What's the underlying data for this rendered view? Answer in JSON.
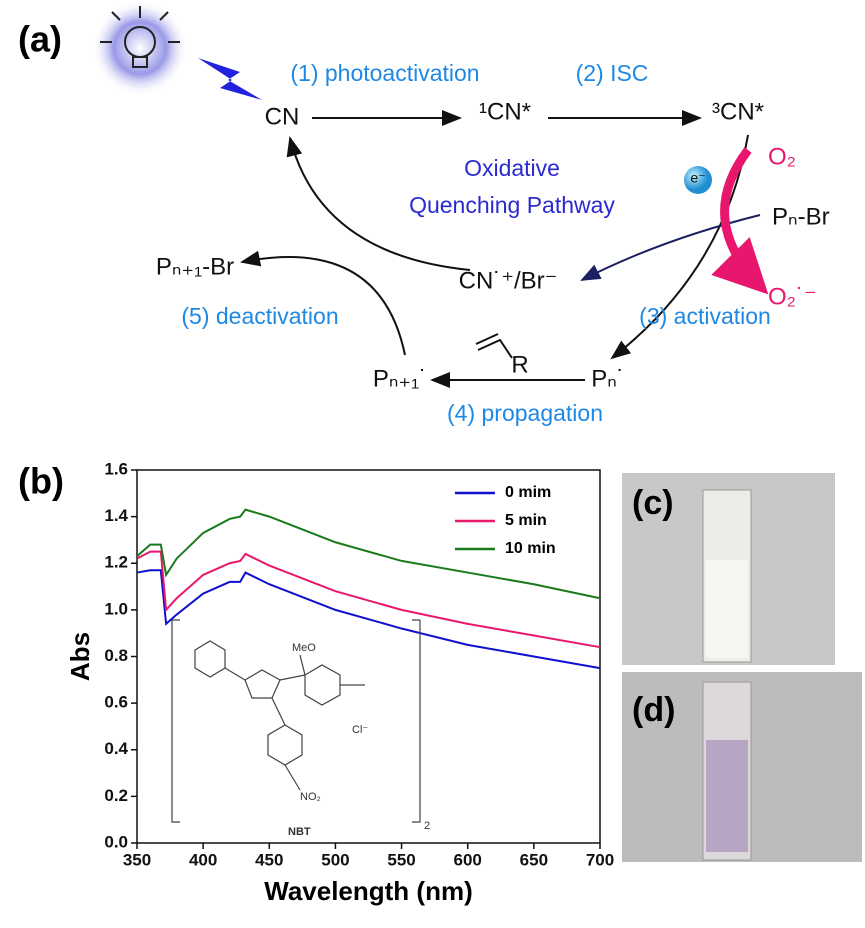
{
  "panel_labels": {
    "a": "(a)",
    "b": "(b)",
    "c": "(c)",
    "d": "(d)"
  },
  "diagram": {
    "steps": [
      "(1) photoactivation",
      "(2) ISC",
      "(3) activation",
      "(4) propagation",
      "(5) deactivation"
    ],
    "pathway": [
      "Oxidative",
      "Quenching Pathway"
    ],
    "species": {
      "cn": "CN",
      "singlet": "¹CN*",
      "triplet": "³CN*",
      "oxygen": "O₂",
      "superoxide": "O₂˙⁻",
      "electron": "e⁻",
      "initiator": "Pₙ-Br",
      "radical_cation": "CN˙⁺/Br⁻",
      "dormant": "Pₙ₊₁-Br",
      "radical": "Pₙ˙",
      "grown_radical": "Pₙ₊₁˙",
      "monomer_r": "R"
    }
  },
  "inset": {
    "methoxy": "MeO",
    "chloride": "Cl⁻",
    "nitro": "NO₂",
    "count": "2",
    "name": "NBT"
  },
  "chart_data": {
    "type": "line",
    "x_label": "Wavelength (nm)",
    "y_label": "Abs",
    "x": [
      350,
      360,
      368,
      372,
      380,
      400,
      420,
      428,
      432,
      450,
      500,
      550,
      600,
      650,
      700
    ],
    "series": [
      {
        "name": "0 mim",
        "color": "#1010d0",
        "values": [
          1.16,
          1.17,
          1.17,
          0.94,
          0.98,
          1.07,
          1.12,
          1.12,
          1.16,
          1.11,
          1.0,
          0.92,
          0.85,
          0.8,
          0.75
        ]
      },
      {
        "name": "5 min",
        "color": "#e8186d",
        "values": [
          1.22,
          1.25,
          1.25,
          1.0,
          1.05,
          1.15,
          1.2,
          1.21,
          1.24,
          1.19,
          1.08,
          1.0,
          0.94,
          0.89,
          0.84
        ]
      },
      {
        "name": "10 min",
        "color": "#1a7a1a",
        "values": [
          1.23,
          1.28,
          1.28,
          1.15,
          1.22,
          1.33,
          1.39,
          1.4,
          1.43,
          1.4,
          1.29,
          1.21,
          1.16,
          1.11,
          1.05
        ]
      }
    ],
    "xlim": [
      350,
      700
    ],
    "xticks": [
      350,
      400,
      450,
      500,
      550,
      600,
      650,
      700
    ],
    "ylim": [
      0,
      1.6
    ],
    "yticks": [
      {
        "value": 0,
        "label": "0.0"
      },
      0.2,
      0.4,
      0.6,
      0.8,
      {
        "value": 1,
        "label": "1.0"
      },
      1.2,
      1.4,
      1.6
    ],
    "legend": "upper right"
  }
}
